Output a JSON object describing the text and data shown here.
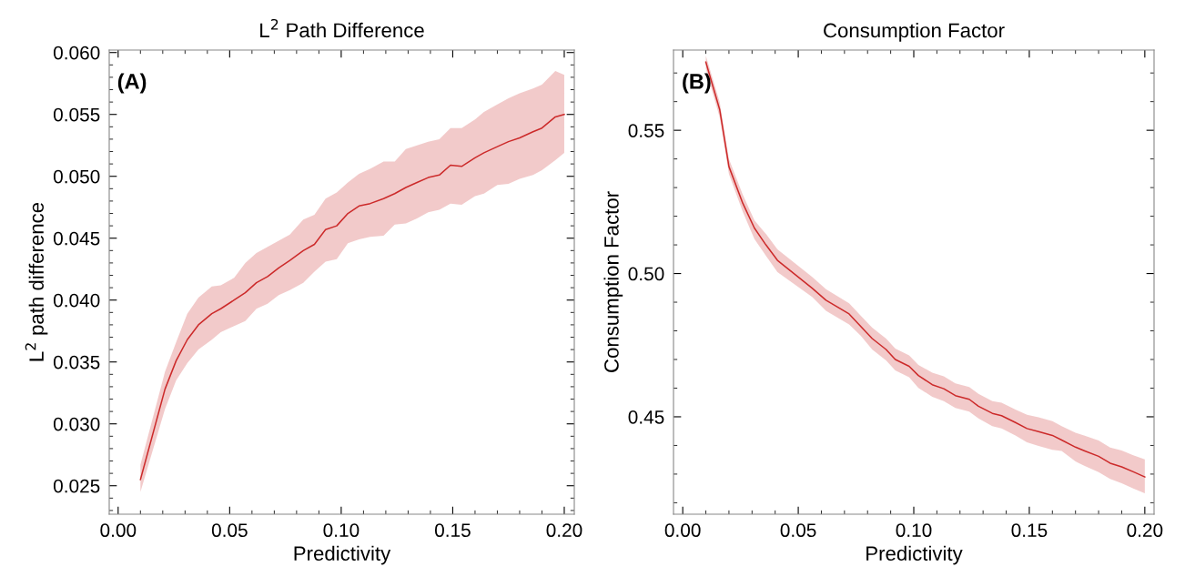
{
  "chart_data": [
    {
      "type": "line",
      "title": "L$^{2}$ Path Difference",
      "xlabel": "Predictivity",
      "ylabel": "L$^{2}$ path difference",
      "annotations": [
        "(A)"
      ],
      "x": [
        0.01,
        0.021,
        0.026,
        0.031,
        0.036,
        0.042,
        0.046,
        0.052,
        0.057,
        0.062,
        0.067,
        0.072,
        0.077,
        0.083,
        0.088,
        0.093,
        0.098,
        0.103,
        0.108,
        0.113,
        0.119,
        0.124,
        0.129,
        0.134,
        0.139,
        0.144,
        0.149,
        0.154,
        0.16,
        0.164,
        0.17,
        0.175,
        0.18,
        0.186,
        0.19,
        0.196,
        0.2
      ],
      "series": [
        {
          "color": "#cc2a2a",
          "values": [
            0.0255,
            0.0328,
            0.0351,
            0.0368,
            0.038,
            0.0389,
            0.0393,
            0.04,
            0.0406,
            0.0414,
            0.0419,
            0.0426,
            0.0432,
            0.044,
            0.0445,
            0.0457,
            0.046,
            0.047,
            0.0476,
            0.0478,
            0.0482,
            0.0486,
            0.0491,
            0.0495,
            0.0499,
            0.0501,
            0.0509,
            0.0508,
            0.0515,
            0.0519,
            0.0524,
            0.0528,
            0.0531,
            0.0536,
            0.0539,
            0.0548,
            0.055
          ],
          "lower": [
            0.0245,
            0.0312,
            0.0335,
            0.0349,
            0.036,
            0.0368,
            0.0374,
            0.0379,
            0.0383,
            0.0393,
            0.0397,
            0.0404,
            0.0408,
            0.0414,
            0.0423,
            0.0431,
            0.0433,
            0.0446,
            0.0449,
            0.0451,
            0.0452,
            0.0461,
            0.0462,
            0.0466,
            0.0471,
            0.0473,
            0.0478,
            0.0477,
            0.0484,
            0.0486,
            0.0493,
            0.0494,
            0.0498,
            0.0501,
            0.0505,
            0.0513,
            0.0519
          ],
          "upper": [
            0.0267,
            0.0342,
            0.0366,
            0.0389,
            0.0402,
            0.0411,
            0.0412,
            0.0418,
            0.043,
            0.0438,
            0.0443,
            0.0448,
            0.0453,
            0.0465,
            0.0469,
            0.0482,
            0.0487,
            0.0495,
            0.0502,
            0.0506,
            0.0512,
            0.0512,
            0.0522,
            0.0525,
            0.0528,
            0.053,
            0.0539,
            0.0539,
            0.0546,
            0.0552,
            0.0558,
            0.0563,
            0.0567,
            0.0571,
            0.0574,
            0.0585,
            0.0582
          ]
        }
      ],
      "xlim": [
        -0.004,
        0.2045
      ],
      "ylim": [
        0.0227,
        0.0602
      ],
      "xticks": [
        {
          "value": 0.0,
          "label": "0.00"
        },
        {
          "value": 0.05,
          "label": "0.05"
        },
        {
          "value": 0.1,
          "label": "0.10"
        },
        {
          "value": 0.15,
          "label": "0.15"
        },
        {
          "value": 0.2,
          "label": "0.20"
        },
        {
          "value": 0.01,
          "label": null
        },
        {
          "value": 0.02,
          "label": null
        },
        {
          "value": 0.03,
          "label": null
        },
        {
          "value": 0.04,
          "label": null
        },
        {
          "value": 0.06,
          "label": null
        },
        {
          "value": 0.07,
          "label": null
        },
        {
          "value": 0.08,
          "label": null
        },
        {
          "value": 0.09,
          "label": null
        },
        {
          "value": 0.11,
          "label": null
        },
        {
          "value": 0.12,
          "label": null
        },
        {
          "value": 0.13,
          "label": null
        },
        {
          "value": 0.14,
          "label": null
        },
        {
          "value": 0.16,
          "label": null
        },
        {
          "value": 0.17,
          "label": null
        },
        {
          "value": 0.18,
          "label": null
        },
        {
          "value": 0.19,
          "label": null
        }
      ],
      "yticks": [
        {
          "value": 0.025,
          "label": "0.025"
        },
        {
          "value": 0.03,
          "label": "0.030"
        },
        {
          "value": 0.035,
          "label": "0.035"
        },
        {
          "value": 0.04,
          "label": "0.040"
        },
        {
          "value": 0.045,
          "label": "0.045"
        },
        {
          "value": 0.05,
          "label": "0.050"
        },
        {
          "value": 0.055,
          "label": "0.055"
        },
        {
          "value": 0.06,
          "label": "0.060"
        },
        {
          "value": 0.023,
          "label": null
        },
        {
          "value": 0.024,
          "label": null
        },
        {
          "value": 0.026,
          "label": null
        },
        {
          "value": 0.027,
          "label": null
        },
        {
          "value": 0.028,
          "label": null
        },
        {
          "value": 0.029,
          "label": null
        },
        {
          "value": 0.031,
          "label": null
        },
        {
          "value": 0.032,
          "label": null
        },
        {
          "value": 0.033,
          "label": null
        },
        {
          "value": 0.034,
          "label": null
        },
        {
          "value": 0.036,
          "label": null
        },
        {
          "value": 0.037,
          "label": null
        },
        {
          "value": 0.038,
          "label": null
        },
        {
          "value": 0.039,
          "label": null
        },
        {
          "value": 0.041,
          "label": null
        },
        {
          "value": 0.042,
          "label": null
        },
        {
          "value": 0.043,
          "label": null
        },
        {
          "value": 0.044,
          "label": null
        },
        {
          "value": 0.046,
          "label": null
        },
        {
          "value": 0.047,
          "label": null
        },
        {
          "value": 0.048,
          "label": null
        },
        {
          "value": 0.049,
          "label": null
        },
        {
          "value": 0.051,
          "label": null
        },
        {
          "value": 0.052,
          "label": null
        },
        {
          "value": 0.053,
          "label": null
        },
        {
          "value": 0.054,
          "label": null
        },
        {
          "value": 0.056,
          "label": null
        },
        {
          "value": 0.057,
          "label": null
        },
        {
          "value": 0.058,
          "label": null
        },
        {
          "value": 0.059,
          "label": null
        }
      ],
      "grid": false,
      "marker": "none",
      "line_style": "solid"
    },
    {
      "type": "line",
      "title": "Consumption Factor",
      "xlabel": "Predictivity",
      "ylabel": "Consumption Factor",
      "annotations": [
        "(B)"
      ],
      "x": [
        0.01,
        0.016,
        0.02,
        0.026,
        0.031,
        0.036,
        0.041,
        0.056,
        0.062,
        0.072,
        0.077,
        0.082,
        0.088,
        0.092,
        0.098,
        0.102,
        0.108,
        0.113,
        0.118,
        0.124,
        0.128,
        0.134,
        0.138,
        0.144,
        0.149,
        0.154,
        0.16,
        0.164,
        0.17,
        0.174,
        0.18,
        0.185,
        0.19,
        0.195,
        0.2
      ],
      "series": [
        {
          "color": "#cc2a2a",
          "values": [
            0.5738,
            0.5572,
            0.5373,
            0.5245,
            0.5159,
            0.51,
            0.5046,
            0.4949,
            0.4907,
            0.4859,
            0.4816,
            0.4773,
            0.4735,
            0.47,
            0.4676,
            0.4644,
            0.4612,
            0.4598,
            0.4574,
            0.4561,
            0.4537,
            0.4512,
            0.4504,
            0.448,
            0.4459,
            0.4448,
            0.4435,
            0.4419,
            0.4394,
            0.4381,
            0.4362,
            0.4338,
            0.4325,
            0.4308,
            0.429
          ],
          "lower": [
            0.5715,
            0.5545,
            0.5347,
            0.5215,
            0.5121,
            0.5062,
            0.5005,
            0.4918,
            0.487,
            0.4822,
            0.4783,
            0.4735,
            0.4697,
            0.4662,
            0.4638,
            0.4601,
            0.457,
            0.4555,
            0.4531,
            0.4518,
            0.4494,
            0.4467,
            0.4459,
            0.4435,
            0.4411,
            0.4398,
            0.4385,
            0.4381,
            0.4344,
            0.4328,
            0.4307,
            0.4283,
            0.4268,
            0.425,
            0.4233
          ],
          "upper": [
            0.576,
            0.5598,
            0.54,
            0.5275,
            0.5186,
            0.5138,
            0.5084,
            0.4988,
            0.4945,
            0.4896,
            0.4853,
            0.4811,
            0.4773,
            0.4738,
            0.4714,
            0.4681,
            0.4654,
            0.4641,
            0.4617,
            0.4604,
            0.458,
            0.4555,
            0.4549,
            0.4525,
            0.4507,
            0.4498,
            0.4485,
            0.4467,
            0.4444,
            0.4434,
            0.4417,
            0.4393,
            0.4382,
            0.4366,
            0.4351
          ]
        }
      ],
      "xlim": [
        -0.004,
        0.204
      ],
      "ylim": [
        0.416,
        0.578
      ],
      "xticks": [
        {
          "value": 0.0,
          "label": "0.00"
        },
        {
          "value": 0.05,
          "label": "0.05"
        },
        {
          "value": 0.1,
          "label": "0.10"
        },
        {
          "value": 0.15,
          "label": "0.15"
        },
        {
          "value": 0.2,
          "label": "0.20"
        },
        {
          "value": 0.01,
          "label": null
        },
        {
          "value": 0.02,
          "label": null
        },
        {
          "value": 0.03,
          "label": null
        },
        {
          "value": 0.04,
          "label": null
        },
        {
          "value": 0.06,
          "label": null
        },
        {
          "value": 0.07,
          "label": null
        },
        {
          "value": 0.08,
          "label": null
        },
        {
          "value": 0.09,
          "label": null
        },
        {
          "value": 0.11,
          "label": null
        },
        {
          "value": 0.12,
          "label": null
        },
        {
          "value": 0.13,
          "label": null
        },
        {
          "value": 0.14,
          "label": null
        },
        {
          "value": 0.16,
          "label": null
        },
        {
          "value": 0.17,
          "label": null
        },
        {
          "value": 0.18,
          "label": null
        },
        {
          "value": 0.19,
          "label": null
        }
      ],
      "yticks": [
        {
          "value": 0.45,
          "label": "0.45"
        },
        {
          "value": 0.5,
          "label": "0.50"
        },
        {
          "value": 0.55,
          "label": "0.55"
        },
        {
          "value": 0.42,
          "label": null
        },
        {
          "value": 0.43,
          "label": null
        },
        {
          "value": 0.44,
          "label": null
        },
        {
          "value": 0.46,
          "label": null
        },
        {
          "value": 0.47,
          "label": null
        },
        {
          "value": 0.48,
          "label": null
        },
        {
          "value": 0.49,
          "label": null
        },
        {
          "value": 0.51,
          "label": null
        },
        {
          "value": 0.52,
          "label": null
        },
        {
          "value": 0.53,
          "label": null
        },
        {
          "value": 0.54,
          "label": null
        },
        {
          "value": 0.56,
          "label": null
        },
        {
          "value": 0.57,
          "label": null
        }
      ],
      "grid": false,
      "marker": "none",
      "line_style": "solid"
    }
  ]
}
